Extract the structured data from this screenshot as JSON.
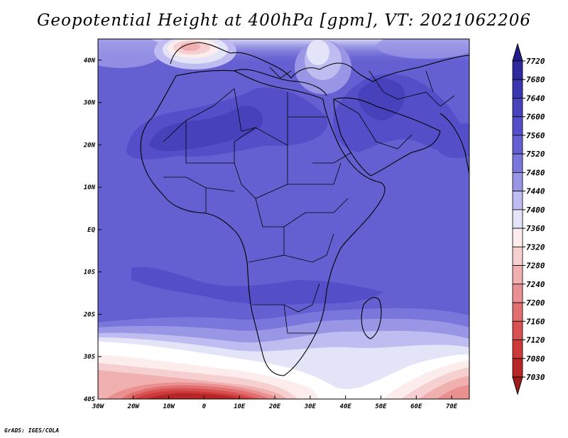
{
  "title": "Geopotential Height at 400hPa [gpm], VT: 2021062206",
  "credit": "GrADS: IGES/COLA",
  "map": {
    "lon_range": [
      -30,
      75
    ],
    "lat_range": [
      -40,
      45
    ],
    "lon_ticks": [
      {
        "value": -30,
        "label": "30W"
      },
      {
        "value": -20,
        "label": "20W"
      },
      {
        "value": -10,
        "label": "10W"
      },
      {
        "value": 0,
        "label": "0"
      },
      {
        "value": 10,
        "label": "10E"
      },
      {
        "value": 20,
        "label": "20E"
      },
      {
        "value": 30,
        "label": "30E"
      },
      {
        "value": 40,
        "label": "40E"
      },
      {
        "value": 50,
        "label": "50E"
      },
      {
        "value": 60,
        "label": "60E"
      },
      {
        "value": 70,
        "label": "70E"
      }
    ],
    "lat_ticks": [
      {
        "value": 40,
        "label": "40N"
      },
      {
        "value": 30,
        "label": "30N"
      },
      {
        "value": 20,
        "label": "20N"
      },
      {
        "value": 10,
        "label": "10N"
      },
      {
        "value": 0,
        "label": "EQ"
      },
      {
        "value": -10,
        "label": "10S"
      },
      {
        "value": -20,
        "label": "20S"
      },
      {
        "value": -30,
        "label": "30S"
      },
      {
        "value": -40,
        "label": "40S"
      }
    ]
  },
  "colorbar": {
    "labels": [
      "7720",
      "7680",
      "7640",
      "7600",
      "7560",
      "7520",
      "7480",
      "7440",
      "7400",
      "7360",
      "7320",
      "7280",
      "7240",
      "7200",
      "7160",
      "7120",
      "7080",
      "7030"
    ],
    "colors": [
      "#241c8e",
      "#2e2a9e",
      "#3a36ae",
      "#4742bc",
      "#544fc8",
      "#6460d2",
      "#7a77dc",
      "#9996e6",
      "#bebcf0",
      "#e4e4f8",
      "#fcecec",
      "#f6d0d0",
      "#f0b0b0",
      "#ea9090",
      "#e27070",
      "#d85252",
      "#cc3a3a",
      "#b62626",
      "#9e1c1c"
    ]
  }
}
